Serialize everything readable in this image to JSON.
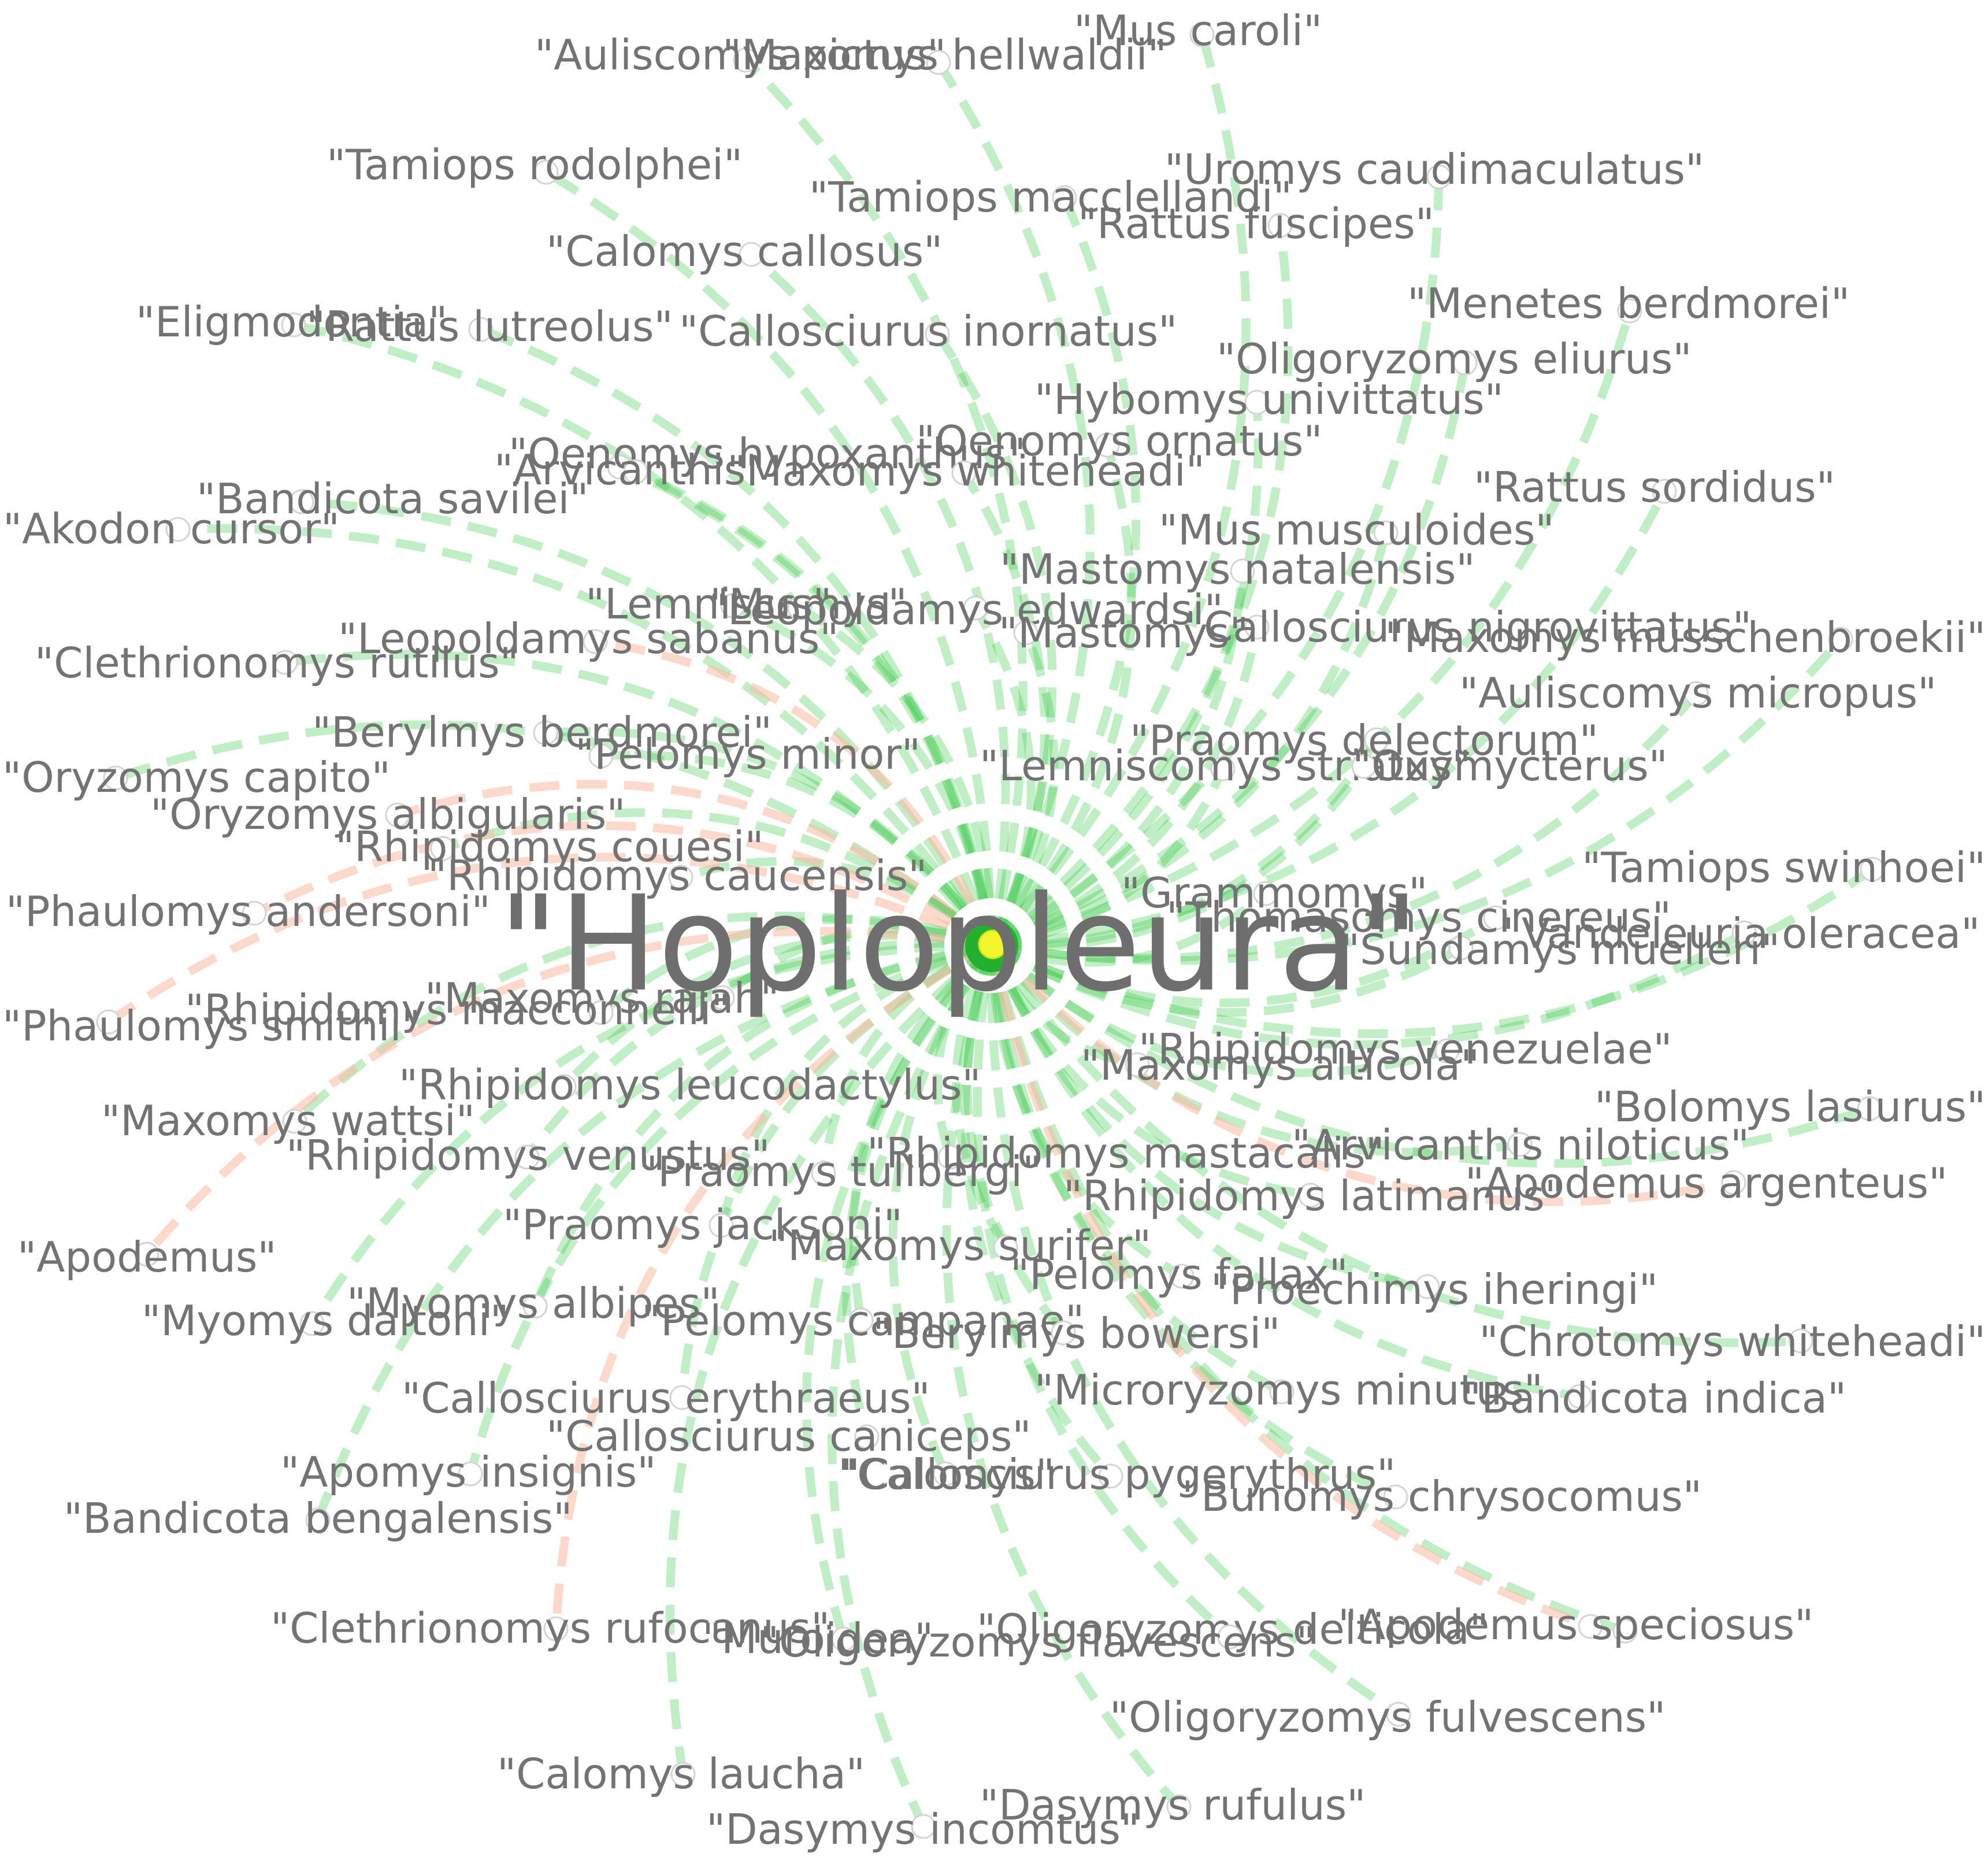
{
  "colors": {
    "edge_green": "#3cc94a",
    "edge_orange": "#fbb9a2",
    "hub_outer": "#23b02f",
    "hub_inner": "#f2f52a",
    "label": "#737373",
    "node_stroke": "#d4d4d4",
    "background": "#ffffff"
  },
  "hub": {
    "label": "\"Hoplopleura\""
  },
  "nodes": [
    {
      "label": "\"Mus caroli\"",
      "edge": "green"
    },
    {
      "label": "\"Auliscomys pictus\"",
      "edge": "green"
    },
    {
      "label": "\"Maxomys hellwaldii\"",
      "edge": "green"
    },
    {
      "label": "\"Tamiops rodolphei\"",
      "edge": "green"
    },
    {
      "label": "\"Uromys caudimaculatus\"",
      "edge": "green"
    },
    {
      "label": "\"Tamiops macclellandi\"",
      "edge": "green"
    },
    {
      "label": "\"Rattus fuscipes\"",
      "edge": "green"
    },
    {
      "label": "\"Calomys callosus\"",
      "edge": "green"
    },
    {
      "label": "\"Menetes berdmorei\"",
      "edge": "green"
    },
    {
      "label": "\"Eligmodontia\"",
      "edge": "green"
    },
    {
      "label": "\"Rattus lutreolus\"",
      "edge": "green"
    },
    {
      "label": "\"Callosciurus inornatus\"",
      "edge": "green"
    },
    {
      "label": "\"Oligoryzomys eliurus\"",
      "edge": "green"
    },
    {
      "label": "\"Hybomys univittatus\"",
      "edge": "green"
    },
    {
      "label": "\"Oenomys ornatus\"",
      "edge": "green"
    },
    {
      "label": "\"Oenomys hypoxanthus\"",
      "edge": "green"
    },
    {
      "label": "\"Arvicanthis\"",
      "edge": "green"
    },
    {
      "label": "\"Maxomys whiteheadi\"",
      "edge": "green"
    },
    {
      "label": "\"Rattus sordidus\"",
      "edge": "green"
    },
    {
      "label": "\"Bandicota savilei\"",
      "edge": "green"
    },
    {
      "label": "\"Akodon cursor\"",
      "edge": "green"
    },
    {
      "label": "\"Mus musculoides\"",
      "edge": "green"
    },
    {
      "label": "\"Mastomys natalensis\"",
      "edge": "green"
    },
    {
      "label": "\"Lemniscomys\"",
      "edge": "green"
    },
    {
      "label": "\"Mus\"",
      "edge": "green"
    },
    {
      "label": "\"Leopoldamys edwardsi\"",
      "edge": "green"
    },
    {
      "label": "\"Callosciurus nigrovittatus\"",
      "edge": "green"
    },
    {
      "label": "\"Mastomys\"",
      "edge": "green"
    },
    {
      "label": "\"Maxomys musschenbroekii\"",
      "edge": "green"
    },
    {
      "label": "\"Leopoldamys sabanus\"",
      "edge": "orange"
    },
    {
      "label": "\"Clethrionomys rutilus\"",
      "edge": "green"
    },
    {
      "label": "\"Auliscomys micropus\"",
      "edge": "green"
    },
    {
      "label": "\"Berylmys berdmorei\"",
      "edge": "green"
    },
    {
      "label": "\"Praomys delectorum\"",
      "edge": "green"
    },
    {
      "label": "\"Pelomys minor\"",
      "edge": "green"
    },
    {
      "label": "\"Lemniscomys striatus\"",
      "edge": "green"
    },
    {
      "label": "\"Oxymycterus\"",
      "edge": "green"
    },
    {
      "label": "\"Oryzomys capito\"",
      "edge": "green"
    },
    {
      "label": "\"Oryzomys albigularis\"",
      "edge": "orange"
    },
    {
      "label": "\"Rhipidomys couesi\"",
      "edge": "green"
    },
    {
      "label": "\"Rhipidomys caucensis\"",
      "edge": "green"
    },
    {
      "label": "\"Tamiops swinhoei\"",
      "edge": "green"
    },
    {
      "label": "\"Grammomys\"",
      "edge": "green"
    },
    {
      "label": "\"Thomasomys cinereus\"",
      "edge": "green"
    },
    {
      "label": "\"Phaulomys andersoni\"",
      "edge": "orange"
    },
    {
      "label": "\"Vandeleuria oleracea\"",
      "edge": "green"
    },
    {
      "label": "\"Sundamys muelleri\"",
      "edge": "green"
    },
    {
      "label": "\"Maxomys rajah\"",
      "edge": "green"
    },
    {
      "label": "\"Phaulomys smithii\"",
      "edge": "orange"
    },
    {
      "label": "\"Rhipidomys macconnelli\"",
      "edge": "green"
    },
    {
      "label": "\"Rhipidomys venezuelae\"",
      "edge": "green"
    },
    {
      "label": "\"Maxomys alticola\"",
      "edge": "green"
    },
    {
      "label": "\"Rhipidomys leucodactylus\"",
      "edge": "green"
    },
    {
      "label": "\"Bolomys lasiurus\"",
      "edge": "green"
    },
    {
      "label": "\"Maxomys wattsi\"",
      "edge": "green"
    },
    {
      "label": "\"Arvicanthis niloticus\"",
      "edge": "green"
    },
    {
      "label": "\"Rhipidomys venustus\"",
      "edge": "green"
    },
    {
      "label": "\"Rhipidomys mastacalis\"",
      "edge": "green"
    },
    {
      "label": "\"Praomys tullbergi\"",
      "edge": "green"
    },
    {
      "label": "\"Apodemus argenteus\"",
      "edge": "orange"
    },
    {
      "label": "\"Rhipidomys latimanus\"",
      "edge": "green"
    },
    {
      "label": "\"Praomys jacksoni\"",
      "edge": "green"
    },
    {
      "label": "\"Maxomys surifer\"",
      "edge": "green"
    },
    {
      "label": "\"Apodemus\"",
      "edge": "orange"
    },
    {
      "label": "\"Pelomys fallax\"",
      "edge": "green"
    },
    {
      "label": "\"Proechimys iheringi\"",
      "edge": "green"
    },
    {
      "label": "\"Myomys albipes\"",
      "edge": "green"
    },
    {
      "label": "\"Myomys daltoni\"",
      "edge": "green"
    },
    {
      "label": "\"Chrotomys whiteheadi\"",
      "edge": "green"
    },
    {
      "label": "\"Pelomys campanae\"",
      "edge": "green"
    },
    {
      "label": "\"Berylmys bowersi\"",
      "edge": "green"
    },
    {
      "label": "\"Microryzomys minutus\"",
      "edge": "green"
    },
    {
      "label": "\"Bandicota indica\"",
      "edge": "green"
    },
    {
      "label": "\"Callosciurus erythraeus\"",
      "edge": "green"
    },
    {
      "label": "\"Callosciurus caniceps\"",
      "edge": "green"
    },
    {
      "label": "\"Apomys insignis\"",
      "edge": "green"
    },
    {
      "label": "\"Calomys\"",
      "edge": "green"
    },
    {
      "label": "\"Callosciurus pygerythrus\"",
      "edge": "green"
    },
    {
      "label": "\"Bunomys chrysocomus\"",
      "edge": "green"
    },
    {
      "label": "\"Bandicota bengalensis\"",
      "edge": "green"
    },
    {
      "label": "\"Clethrionomys rufocanus\"",
      "edge": "orange"
    },
    {
      "label": "\"Oligoryzomys delticola\"",
      "edge": "green"
    },
    {
      "label": "\"Apodemus speciosus\"",
      "edge": "orange"
    },
    {
      "label": "\"Muroidea\"",
      "edge": "green"
    },
    {
      "label": "\"Oligoryzomys flavescens\"",
      "edge": "green"
    },
    {
      "label": "\"Oligoryzomys fulvescens\"",
      "edge": "green"
    },
    {
      "label": "\"Calomys laucha\"",
      "edge": "green"
    },
    {
      "label": "\"Dasymys rufulus\"",
      "edge": "green"
    },
    {
      "label": "\"Dasymys incomtus\"",
      "edge": "green"
    }
  ]
}
